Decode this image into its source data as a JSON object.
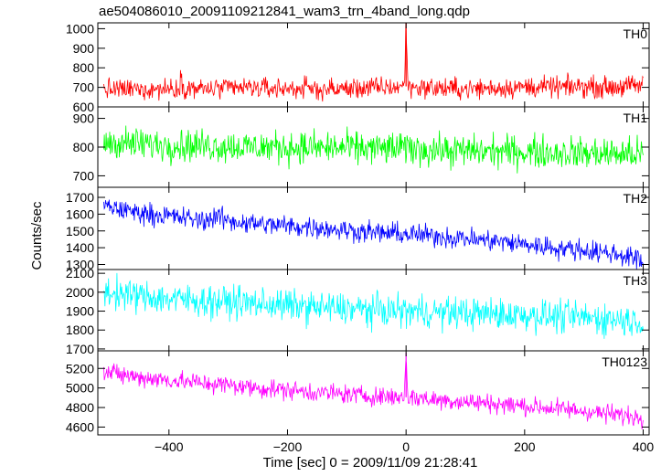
{
  "title": "ae504086010_20091109212841_wam3_trn_4band_long.qdp",
  "xlabel": "Time [sec] 0 = 2009/11/09 21:28:41",
  "ylabel": "Counts/sec",
  "chart_data": {
    "type": "line",
    "title": "ae504086010_20091109212841_wam3_trn_4band_long.qdp",
    "xlabel": "Time [sec] 0 = 2009/11/09 21:28:41",
    "ylabel": "Counts/sec",
    "xlim": [
      -520,
      410
    ],
    "xticks": [
      -400,
      -200,
      0,
      200,
      400
    ],
    "grid": false,
    "legend": "none; each panel labeled at top-right",
    "panels": [
      {
        "name": "TH0",
        "color": "#ff0000",
        "ylim": [
          600,
          1030
        ],
        "yticks": [
          600,
          700,
          800,
          900,
          1000
        ],
        "points": [
          [
            -510,
            690
          ],
          [
            -480,
            688
          ],
          [
            -450,
            690
          ],
          [
            -420,
            692
          ],
          [
            -385,
            695
          ],
          [
            -380,
            740
          ],
          [
            -375,
            700
          ],
          [
            -340,
            690
          ],
          [
            -300,
            695
          ],
          [
            -260,
            698
          ],
          [
            -220,
            693
          ],
          [
            -180,
            695
          ],
          [
            -140,
            690
          ],
          [
            -100,
            692
          ],
          [
            -60,
            698
          ],
          [
            -20,
            700
          ],
          [
            -3,
            705
          ],
          [
            0,
            1030
          ],
          [
            3,
            705
          ],
          [
            20,
            700
          ],
          [
            60,
            695
          ],
          [
            100,
            692
          ],
          [
            140,
            695
          ],
          [
            180,
            700
          ],
          [
            220,
            702
          ],
          [
            260,
            700
          ],
          [
            300,
            705
          ],
          [
            340,
            700
          ],
          [
            370,
            705
          ],
          [
            400,
            710
          ]
        ],
        "noise": 38
      },
      {
        "name": "TH1",
        "color": "#00ff00",
        "ylim": [
          660,
          940
        ],
        "yticks": [
          700,
          800,
          900
        ],
        "points": [
          [
            -510,
            818
          ],
          [
            -460,
            812
          ],
          [
            -410,
            808
          ],
          [
            -360,
            806
          ],
          [
            -310,
            803
          ],
          [
            -260,
            800
          ],
          [
            -210,
            800
          ],
          [
            -160,
            798
          ],
          [
            -110,
            797
          ],
          [
            -60,
            796
          ],
          [
            -20,
            795
          ],
          [
            0,
            797
          ],
          [
            40,
            790
          ],
          [
            100,
            786
          ],
          [
            160,
            785
          ],
          [
            220,
            783
          ],
          [
            280,
            780
          ],
          [
            340,
            777
          ],
          [
            400,
            775
          ]
        ],
        "noise": 40
      },
      {
        "name": "TH2",
        "color": "#0000ff",
        "ylim": [
          1270,
          1760
        ],
        "yticks": [
          1300,
          1400,
          1500,
          1600,
          1700
        ],
        "points": [
          [
            -510,
            1650
          ],
          [
            -470,
            1620
          ],
          [
            -420,
            1595
          ],
          [
            -380,
            1580
          ],
          [
            -340,
            1560
          ],
          [
            -320,
            1590
          ],
          [
            -300,
            1560
          ],
          [
            -260,
            1545
          ],
          [
            -200,
            1530
          ],
          [
            -150,
            1520
          ],
          [
            -100,
            1505
          ],
          [
            -50,
            1490
          ],
          [
            0,
            1480
          ],
          [
            50,
            1470
          ],
          [
            100,
            1455
          ],
          [
            150,
            1440
          ],
          [
            200,
            1420
          ],
          [
            250,
            1400
          ],
          [
            300,
            1385
          ],
          [
            350,
            1365
          ],
          [
            380,
            1345
          ],
          [
            400,
            1310
          ]
        ],
        "noise": 45
      },
      {
        "name": "TH3",
        "color": "#00ffff",
        "ylim": [
          1690,
          2120
        ],
        "yticks": [
          1700,
          1800,
          1900,
          2000,
          2100
        ],
        "points": [
          [
            -510,
            2000
          ],
          [
            -450,
            1980
          ],
          [
            -400,
            1965
          ],
          [
            -350,
            1955
          ],
          [
            -300,
            1950
          ],
          [
            -250,
            1940
          ],
          [
            -200,
            1930
          ],
          [
            -150,
            1920
          ],
          [
            -100,
            1912
          ],
          [
            -50,
            1905
          ],
          [
            0,
            1900
          ],
          [
            50,
            1895
          ],
          [
            100,
            1890
          ],
          [
            150,
            1885
          ],
          [
            200,
            1880
          ],
          [
            250,
            1872
          ],
          [
            300,
            1865
          ],
          [
            350,
            1858
          ],
          [
            400,
            1845
          ]
        ],
        "noise": 60
      },
      {
        "name": "TH0123",
        "color": "#ff00ff",
        "ylim": [
          4520,
          5380
        ],
        "yticks": [
          4600,
          4800,
          5000,
          5200
        ],
        "points": [
          [
            -510,
            5160
          ],
          [
            -450,
            5110
          ],
          [
            -400,
            5080
          ],
          [
            -350,
            5055
          ],
          [
            -300,
            5030
          ],
          [
            -250,
            5000
          ],
          [
            -200,
            4980
          ],
          [
            -150,
            4955
          ],
          [
            -100,
            4935
          ],
          [
            -50,
            4915
          ],
          [
            -3,
            4905
          ],
          [
            0,
            5360
          ],
          [
            3,
            4905
          ],
          [
            50,
            4880
          ],
          [
            100,
            4860
          ],
          [
            150,
            4840
          ],
          [
            200,
            4815
          ],
          [
            250,
            4790
          ],
          [
            300,
            4765
          ],
          [
            350,
            4730
          ],
          [
            400,
            4700
          ]
        ],
        "noise": 70
      }
    ]
  }
}
